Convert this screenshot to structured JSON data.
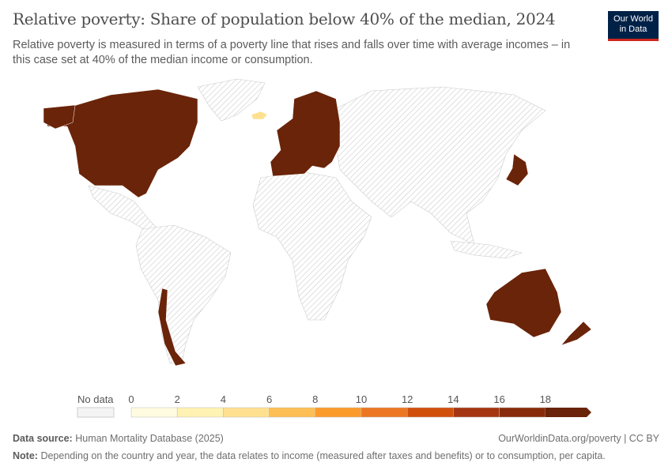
{
  "header": {
    "title": "Relative poverty: Share of population below 40% of the median, 2024",
    "subtitle": "Relative poverty is measured in terms of a poverty line that rises and falls over time with average incomes – in this case set at 40% of the median income or consumption.",
    "logo": "Our World in Data"
  },
  "chart_data": {
    "type": "choropleth-map",
    "year": 2024,
    "legend": {
      "no_data_label": "No data",
      "ticks": [
        "0",
        "2",
        "4",
        "6",
        "8",
        "10",
        "12",
        "14",
        "16",
        "18"
      ],
      "bin_colors": [
        "#fffbe0",
        "#fff2b3",
        "#fee090",
        "#fdbf55",
        "#fb9b2c",
        "#ec7622",
        "#d04f0b",
        "#a53511",
        "#882b0a",
        "#6a2409"
      ],
      "no_data_pattern": "diagonal-hatch"
    },
    "countries_with_data": [
      {
        "region": "Canada",
        "bin": "18+"
      },
      {
        "region": "United States",
        "bin": "18+"
      },
      {
        "region": "Chile",
        "bin": "18+"
      },
      {
        "region": "Europe (most countries)",
        "bin": "18+"
      },
      {
        "region": "Iceland",
        "bin": "2-4"
      },
      {
        "region": "Japan",
        "bin": "18+"
      },
      {
        "region": "Australia",
        "bin": "18+"
      },
      {
        "region": "New Zealand",
        "bin": "18+"
      }
    ]
  },
  "footer": {
    "source_label": "Data source:",
    "source": "Human Mortality Database (2025)",
    "link": "OurWorldinData.org/poverty | CC BY",
    "note_label": "Note:",
    "note": "Depending on the country and year, the data relates to income (measured after taxes and benefits) or to consumption, per capita."
  }
}
